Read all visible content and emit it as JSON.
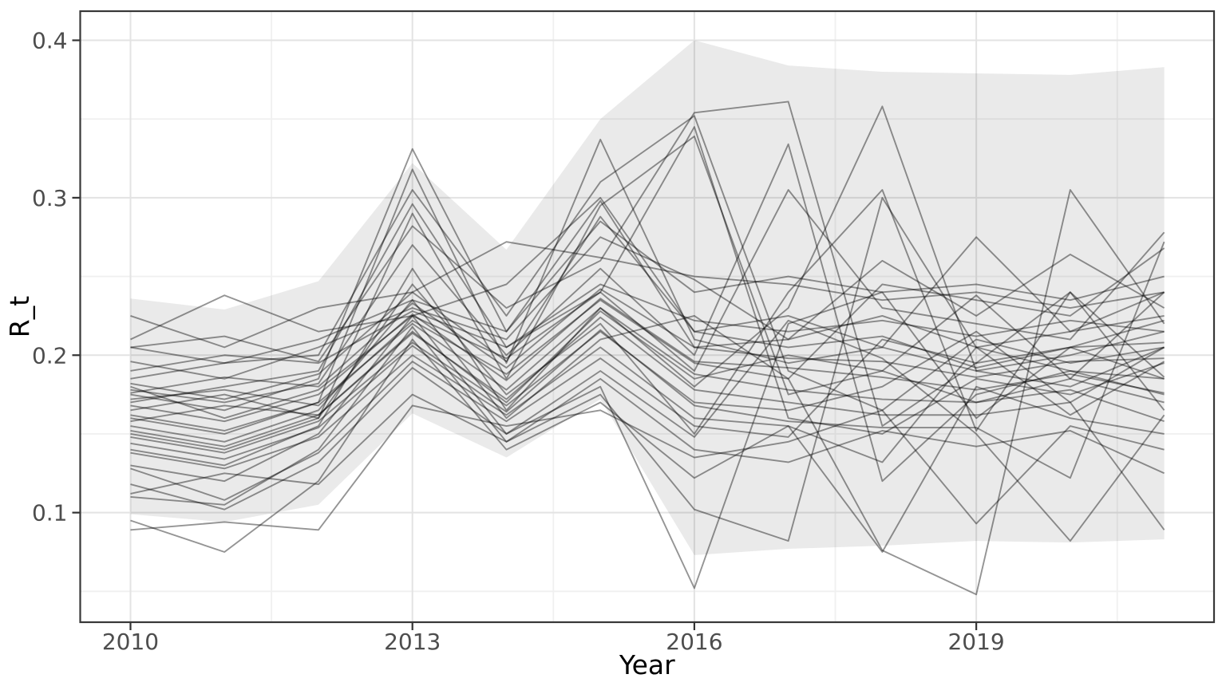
{
  "chart_data": {
    "type": "line",
    "title": "",
    "xlabel": "Year",
    "ylabel": "R_t",
    "legend": "none",
    "grid": "major+minor",
    "x": [
      2010,
      2011,
      2012,
      2013,
      2014,
      2015,
      2016,
      2017,
      2018,
      2019,
      2020,
      2021
    ],
    "x_ticks": {
      "values": [
        2010,
        2013,
        2016,
        2019
      ],
      "labels": [
        "2010",
        "2013",
        "2016",
        "2019"
      ]
    },
    "y_ticks": {
      "values": [
        0.1,
        0.2,
        0.3,
        0.4
      ],
      "labels": [
        "0.1",
        "0.2",
        "0.3",
        "0.4"
      ]
    },
    "x_minor": [
      2011.5,
      2014.5,
      2017.5,
      2020.5
    ],
    "y_minor": [
      0.05,
      0.15,
      0.25,
      0.35
    ],
    "xlim": [
      2009.465,
      2021.53
    ],
    "ylim": [
      0.0304,
      0.4185
    ],
    "ribbon": {
      "upper": [
        0.236,
        0.229,
        0.247,
        0.322,
        0.267,
        0.35,
        0.4,
        0.384,
        0.38,
        0.379,
        0.378,
        0.383
      ],
      "lower": [
        0.099,
        0.094,
        0.105,
        0.163,
        0.135,
        0.172,
        0.073,
        0.077,
        0.079,
        0.082,
        0.081,
        0.083
      ]
    },
    "series": [
      [
        0.175,
        0.165,
        0.185,
        0.331,
        0.215,
        0.298,
        0.205,
        0.21,
        0.225,
        0.205,
        0.215,
        0.24
      ],
      [
        0.16,
        0.15,
        0.17,
        0.318,
        0.195,
        0.337,
        0.21,
        0.195,
        0.205,
        0.19,
        0.2,
        0.215
      ],
      [
        0.185,
        0.195,
        0.2,
        0.305,
        0.225,
        0.31,
        0.352,
        0.19,
        0.165,
        0.21,
        0.195,
        0.205
      ],
      [
        0.17,
        0.18,
        0.19,
        0.296,
        0.205,
        0.24,
        0.345,
        0.16,
        0.15,
        0.185,
        0.175,
        0.195
      ],
      [
        0.15,
        0.14,
        0.16,
        0.29,
        0.185,
        0.295,
        0.339,
        0.175,
        0.19,
        0.17,
        0.185,
        0.17
      ],
      [
        0.205,
        0.212,
        0.196,
        0.282,
        0.23,
        0.26,
        0.354,
        0.361,
        0.155,
        0.195,
        0.205,
        0.222
      ],
      [
        0.178,
        0.17,
        0.182,
        0.27,
        0.2,
        0.255,
        0.2,
        0.334,
        0.12,
        0.175,
        0.19,
        0.185
      ],
      [
        0.14,
        0.13,
        0.155,
        0.255,
        0.165,
        0.23,
        0.18,
        0.23,
        0.358,
        0.19,
        0.18,
        0.205
      ],
      [
        0.165,
        0.175,
        0.16,
        0.245,
        0.175,
        0.22,
        0.15,
        0.24,
        0.305,
        0.152,
        0.24,
        0.165
      ],
      [
        0.155,
        0.145,
        0.165,
        0.235,
        0.16,
        0.21,
        0.225,
        0.185,
        0.076,
        0.048,
        0.305,
        0.22
      ],
      [
        0.13,
        0.12,
        0.15,
        0.225,
        0.15,
        0.18,
        0.052,
        0.22,
        0.24,
        0.16,
        0.205,
        0.185
      ],
      [
        0.11,
        0.105,
        0.14,
        0.218,
        0.145,
        0.175,
        0.102,
        0.082,
        0.3,
        0.205,
        0.19,
        0.175
      ],
      [
        0.095,
        0.075,
        0.12,
        0.21,
        0.14,
        0.17,
        0.122,
        0.155,
        0.075,
        0.18,
        0.16,
        0.15
      ],
      [
        0.089,
        0.094,
        0.089,
        0.168,
        0.155,
        0.165,
        0.135,
        0.145,
        0.165,
        0.093,
        0.155,
        0.14
      ],
      [
        0.225,
        0.205,
        0.23,
        0.24,
        0.272,
        0.262,
        0.25,
        0.245,
        0.235,
        0.24,
        0.23,
        0.24
      ],
      [
        0.21,
        0.238,
        0.215,
        0.225,
        0.245,
        0.3,
        0.215,
        0.225,
        0.205,
        0.275,
        0.215,
        0.225
      ],
      [
        0.196,
        0.185,
        0.205,
        0.23,
        0.21,
        0.275,
        0.248,
        0.21,
        0.26,
        0.225,
        0.264,
        0.23
      ],
      [
        0.18,
        0.16,
        0.178,
        0.225,
        0.198,
        0.24,
        0.19,
        0.305,
        0.23,
        0.22,
        0.21,
        0.278
      ],
      [
        0.172,
        0.178,
        0.168,
        0.222,
        0.188,
        0.235,
        0.195,
        0.185,
        0.245,
        0.235,
        0.225,
        0.268
      ],
      [
        0.158,
        0.168,
        0.162,
        0.215,
        0.17,
        0.228,
        0.185,
        0.2,
        0.19,
        0.238,
        0.185,
        0.24
      ],
      [
        0.148,
        0.138,
        0.158,
        0.208,
        0.168,
        0.215,
        0.17,
        0.165,
        0.18,
        0.215,
        0.17,
        0.205
      ],
      [
        0.138,
        0.128,
        0.148,
        0.2,
        0.162,
        0.205,
        0.16,
        0.155,
        0.132,
        0.205,
        0.162,
        0.196
      ],
      [
        0.128,
        0.108,
        0.138,
        0.196,
        0.158,
        0.198,
        0.155,
        0.148,
        0.21,
        0.195,
        0.24,
        0.186
      ],
      [
        0.118,
        0.102,
        0.132,
        0.192,
        0.15,
        0.19,
        0.148,
        0.222,
        0.198,
        0.15,
        0.082,
        0.162
      ],
      [
        0.112,
        0.125,
        0.118,
        0.175,
        0.145,
        0.185,
        0.14,
        0.132,
        0.152,
        0.142,
        0.152,
        0.125
      ],
      [
        0.205,
        0.195,
        0.21,
        0.235,
        0.215,
        0.285,
        0.24,
        0.25,
        0.24,
        0.245,
        0.235,
        0.25
      ],
      [
        0.19,
        0.2,
        0.195,
        0.228,
        0.205,
        0.245,
        0.222,
        0.215,
        0.222,
        0.212,
        0.222,
        0.215
      ],
      [
        0.182,
        0.172,
        0.188,
        0.24,
        0.196,
        0.288,
        0.215,
        0.205,
        0.212,
        0.192,
        0.205,
        0.208
      ],
      [
        0.176,
        0.186,
        0.18,
        0.233,
        0.192,
        0.242,
        0.205,
        0.198,
        0.196,
        0.186,
        0.196,
        0.198
      ],
      [
        0.168,
        0.158,
        0.175,
        0.226,
        0.184,
        0.236,
        0.196,
        0.192,
        0.186,
        0.178,
        0.188,
        0.176
      ],
      [
        0.162,
        0.152,
        0.17,
        0.22,
        0.178,
        0.23,
        0.188,
        0.178,
        0.172,
        0.17,
        0.178,
        0.158
      ],
      [
        0.152,
        0.142,
        0.162,
        0.214,
        0.172,
        0.224,
        0.178,
        0.17,
        0.162,
        0.162,
        0.17,
        0.089
      ],
      [
        0.144,
        0.134,
        0.154,
        0.206,
        0.164,
        0.216,
        0.168,
        0.158,
        0.154,
        0.154,
        0.122,
        0.272
      ]
    ],
    "style": {
      "background": "#ffffff",
      "panel_border": "#383838",
      "grid_major": "#e3e3e3",
      "grid_minor": "#f0f0f0",
      "ribbon_fill": "#000000",
      "ribbon_opacity": 0.082,
      "line_stroke": "#000000",
      "line_opacity": 0.42,
      "line_width": 1.9,
      "tick_mark_color": "#333333",
      "tick_label_color": "#4d4d4d",
      "axis_title_color": "#000000",
      "tick_font_px": 28,
      "title_font_px": 33
    }
  }
}
